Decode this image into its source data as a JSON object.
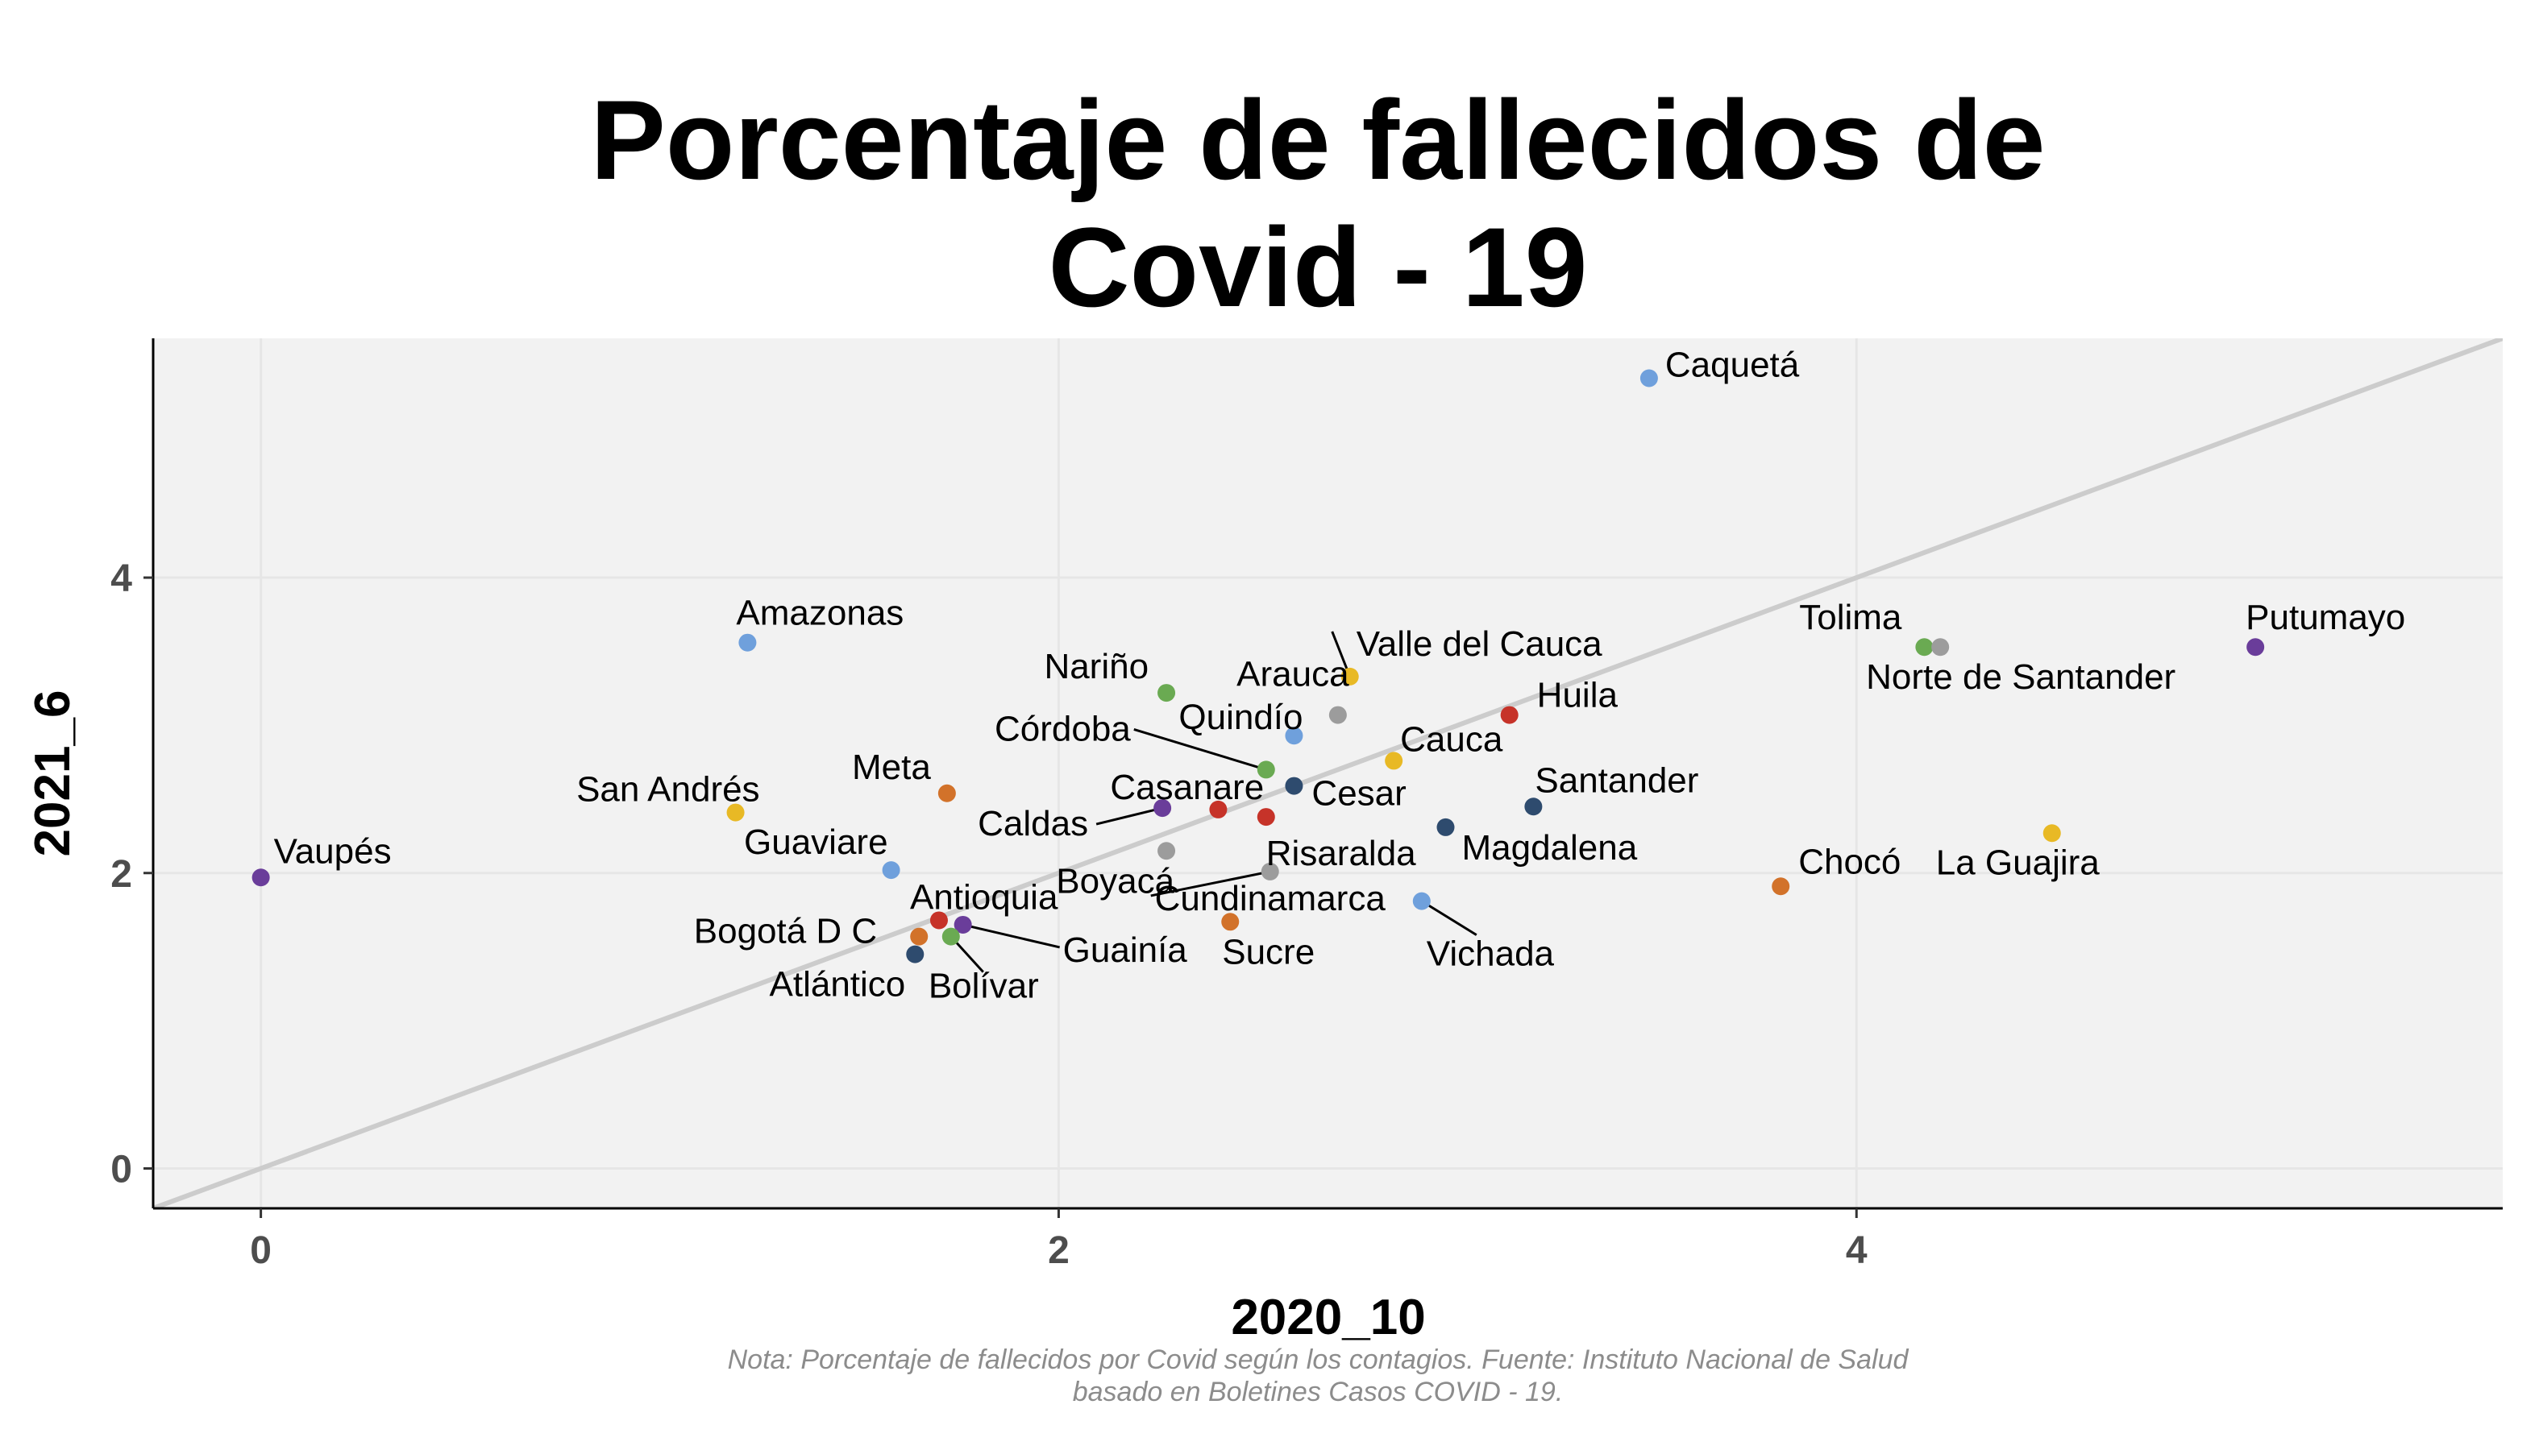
{
  "chart_data": {
    "type": "scatter",
    "title_lines": [
      "Porcentaje de fallecidos de",
      "Covid - 19"
    ],
    "xlabel": "2020_10",
    "ylabel": "2021_6",
    "xlim": [
      -0.27,
      5.62
    ],
    "ylim": [
      -0.27,
      5.62
    ],
    "x_ticks": [
      0,
      2,
      4
    ],
    "y_ticks": [
      0,
      2,
      4
    ],
    "grid": true,
    "reference_line": "y = x",
    "note_lines": [
      "Nota: Porcentaje de fallecidos por Covid según los contagios. Fuente: Instituto Nacional de Salud",
      "basado en Boletines Casos COVID - 19."
    ],
    "colors": {
      "panel": "#f2f2f2",
      "grid": "#e6e6e6",
      "reference_line": "#cccccc",
      "purple": "#6a3d9a",
      "blue": "#6fa0dc",
      "green": "#6aaa52",
      "gray": "#9c9c9c",
      "yellow": "#e8b925",
      "orange": "#d2722a",
      "red": "#c63329",
      "navy": "#2e4b6e"
    },
    "points": [
      {
        "name": "Caquetá",
        "x": 3.48,
        "y": 5.35,
        "color": "#6fa0dc"
      },
      {
        "name": "Amazonas",
        "x": 1.22,
        "y": 3.56,
        "color": "#6fa0dc"
      },
      {
        "name": "Putumayo",
        "x": 5.0,
        "y": 3.53,
        "color": "#6a3d9a"
      },
      {
        "name": "Tolima",
        "x": 4.17,
        "y": 3.53,
        "color": "#6aaa52"
      },
      {
        "name": "Norte de Santander",
        "x": 4.21,
        "y": 3.53,
        "color": "#9c9c9c"
      },
      {
        "name": "Valle del Cauca",
        "x": 2.73,
        "y": 3.33,
        "color": "#e8b925"
      },
      {
        "name": "Nariño",
        "x": 2.27,
        "y": 3.22,
        "color": "#6aaa52"
      },
      {
        "name": "Arauca",
        "x": 2.7,
        "y": 3.07,
        "color": "#9c9c9c"
      },
      {
        "name": "Huila",
        "x": 3.13,
        "y": 3.07,
        "color": "#c63329"
      },
      {
        "name": "Quindío",
        "x": 2.59,
        "y": 2.93,
        "color": "#6fa0dc"
      },
      {
        "name": "Cauca",
        "x": 2.84,
        "y": 2.76,
        "color": "#e8b925"
      },
      {
        "name": "Córdoba",
        "x": 2.52,
        "y": 2.7,
        "color": "#6aaa52"
      },
      {
        "name": "Cesar",
        "x": 2.59,
        "y": 2.59,
        "color": "#2e4b6e"
      },
      {
        "name": "Meta",
        "x": 1.72,
        "y": 2.54,
        "color": "#d2722a"
      },
      {
        "name": "Santander",
        "x": 3.19,
        "y": 2.45,
        "color": "#2e4b6e"
      },
      {
        "name": "Caldas",
        "x": 2.26,
        "y": 2.44,
        "color": "#6a3d9a"
      },
      {
        "name": "Casanare",
        "x": 2.4,
        "y": 2.43,
        "color": "#c63329"
      },
      {
        "name": "San Andrés",
        "x": 1.19,
        "y": 2.41,
        "color": "#e8b925"
      },
      {
        "name": "Risaralda",
        "x": 2.52,
        "y": 2.38,
        "color": "#c63329"
      },
      {
        "name": "Magdalena",
        "x": 2.97,
        "y": 2.31,
        "color": "#2e4b6e"
      },
      {
        "name": "La Guajira",
        "x": 4.49,
        "y": 2.27,
        "color": "#e8b925"
      },
      {
        "name": "Boyacá",
        "x": 2.27,
        "y": 2.15,
        "color": "#9c9c9c"
      },
      {
        "name": "Guaviare",
        "x": 1.58,
        "y": 2.02,
        "color": "#6fa0dc"
      },
      {
        "name": "Cundinamarca",
        "x": 2.53,
        "y": 2.01,
        "color": "#9c9c9c"
      },
      {
        "name": "Vaupés",
        "x": 0.0,
        "y": 1.97,
        "color": "#6a3d9a"
      },
      {
        "name": "Chocó",
        "x": 3.81,
        "y": 1.91,
        "color": "#d2722a"
      },
      {
        "name": "Vichada",
        "x": 2.91,
        "y": 1.81,
        "color": "#6fa0dc"
      },
      {
        "name": "Antioquia",
        "x": 1.7,
        "y": 1.68,
        "color": "#c63329"
      },
      {
        "name": "Sucre",
        "x": 2.43,
        "y": 1.67,
        "color": "#d2722a"
      },
      {
        "name": "Guainía",
        "x": 1.76,
        "y": 1.65,
        "color": "#6a3d9a"
      },
      {
        "name": "Bogotá D C",
        "x": 1.65,
        "y": 1.57,
        "color": "#d2722a"
      },
      {
        "name": "Bolívar",
        "x": 1.73,
        "y": 1.57,
        "color": "#6aaa52"
      },
      {
        "name": "Atlántico",
        "x": 1.64,
        "y": 1.45,
        "color": "#2e4b6e"
      }
    ]
  }
}
